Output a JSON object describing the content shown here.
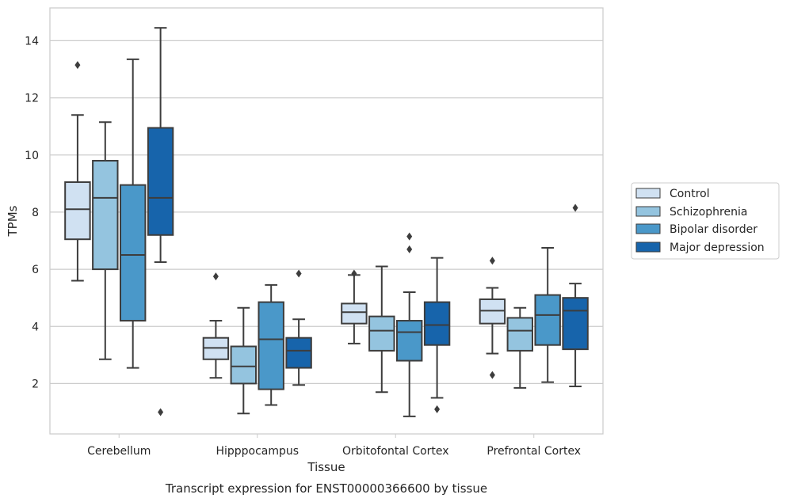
{
  "chart_data": {
    "type": "boxplot",
    "title": "",
    "caption": "Transcript expression for ENST00000366600 by tissue",
    "xlabel": "Tissue",
    "ylabel": "TPMs",
    "ylim": [
      0.3,
      15.1
    ],
    "yticks": [
      2,
      4,
      6,
      8,
      10,
      12,
      14
    ],
    "grid": "horizontal",
    "legend_position": "right",
    "categories": [
      "Cerebellum",
      "Hipppocampus",
      "Orbitofontal Cortex",
      "Prefrontal Cortex"
    ],
    "series": [
      {
        "name": "Control",
        "color": "#d0e1f2",
        "boxes": [
          {
            "whislo": 5.6,
            "q1": 7.05,
            "med": 8.1,
            "q3": 9.05,
            "whishi": 11.4,
            "fliers": [
              13.15
            ]
          },
          {
            "whislo": 2.2,
            "q1": 2.85,
            "med": 3.25,
            "q3": 3.6,
            "whishi": 4.2,
            "fliers": [
              5.75
            ]
          },
          {
            "whislo": 3.4,
            "q1": 4.1,
            "med": 4.5,
            "q3": 4.8,
            "whishi": 5.8,
            "fliers": [
              5.85
            ]
          },
          {
            "whislo": 3.05,
            "q1": 4.1,
            "med": 4.55,
            "q3": 4.95,
            "whishi": 5.35,
            "fliers": [
              2.3,
              6.3
            ]
          }
        ]
      },
      {
        "name": "Schizophrenia",
        "color": "#94c4df",
        "boxes": [
          {
            "whislo": 2.85,
            "q1": 6.0,
            "med": 8.5,
            "q3": 9.8,
            "whishi": 11.15,
            "fliers": []
          },
          {
            "whislo": 0.95,
            "q1": 2.0,
            "med": 2.6,
            "q3": 3.3,
            "whishi": 4.65,
            "fliers": []
          },
          {
            "whislo": 1.7,
            "q1": 3.15,
            "med": 3.85,
            "q3": 4.35,
            "whishi": 6.1,
            "fliers": []
          },
          {
            "whislo": 1.85,
            "q1": 3.15,
            "med": 3.85,
            "q3": 4.3,
            "whishi": 4.65,
            "fliers": []
          }
        ]
      },
      {
        "name": "Bipolar disorder",
        "color": "#4a98c9",
        "boxes": [
          {
            "whislo": 2.55,
            "q1": 4.2,
            "med": 6.5,
            "q3": 8.95,
            "whishi": 13.35,
            "fliers": []
          },
          {
            "whislo": 1.25,
            "q1": 1.8,
            "med": 3.55,
            "q3": 4.85,
            "whishi": 5.45,
            "fliers": []
          },
          {
            "whislo": 0.85,
            "q1": 2.8,
            "med": 3.8,
            "q3": 4.2,
            "whishi": 5.2,
            "fliers": [
              6.7,
              7.15
            ]
          },
          {
            "whislo": 2.05,
            "q1": 3.35,
            "med": 4.4,
            "q3": 5.1,
            "whishi": 6.75,
            "fliers": []
          }
        ]
      },
      {
        "name": "Major depression",
        "color": "#1764ab",
        "boxes": [
          {
            "whislo": 6.25,
            "q1": 7.2,
            "med": 8.5,
            "q3": 10.95,
            "whishi": 14.45,
            "fliers": [
              1.0
            ]
          },
          {
            "whislo": 1.95,
            "q1": 2.55,
            "med": 3.15,
            "q3": 3.6,
            "whishi": 4.25,
            "fliers": [
              5.85
            ]
          },
          {
            "whislo": 1.5,
            "q1": 3.35,
            "med": 4.05,
            "q3": 4.85,
            "whishi": 6.4,
            "fliers": [
              1.1
            ]
          },
          {
            "whislo": 1.9,
            "q1": 3.2,
            "med": 4.55,
            "q3": 5.0,
            "whishi": 5.5,
            "fliers": [
              8.15
            ]
          }
        ]
      }
    ]
  }
}
